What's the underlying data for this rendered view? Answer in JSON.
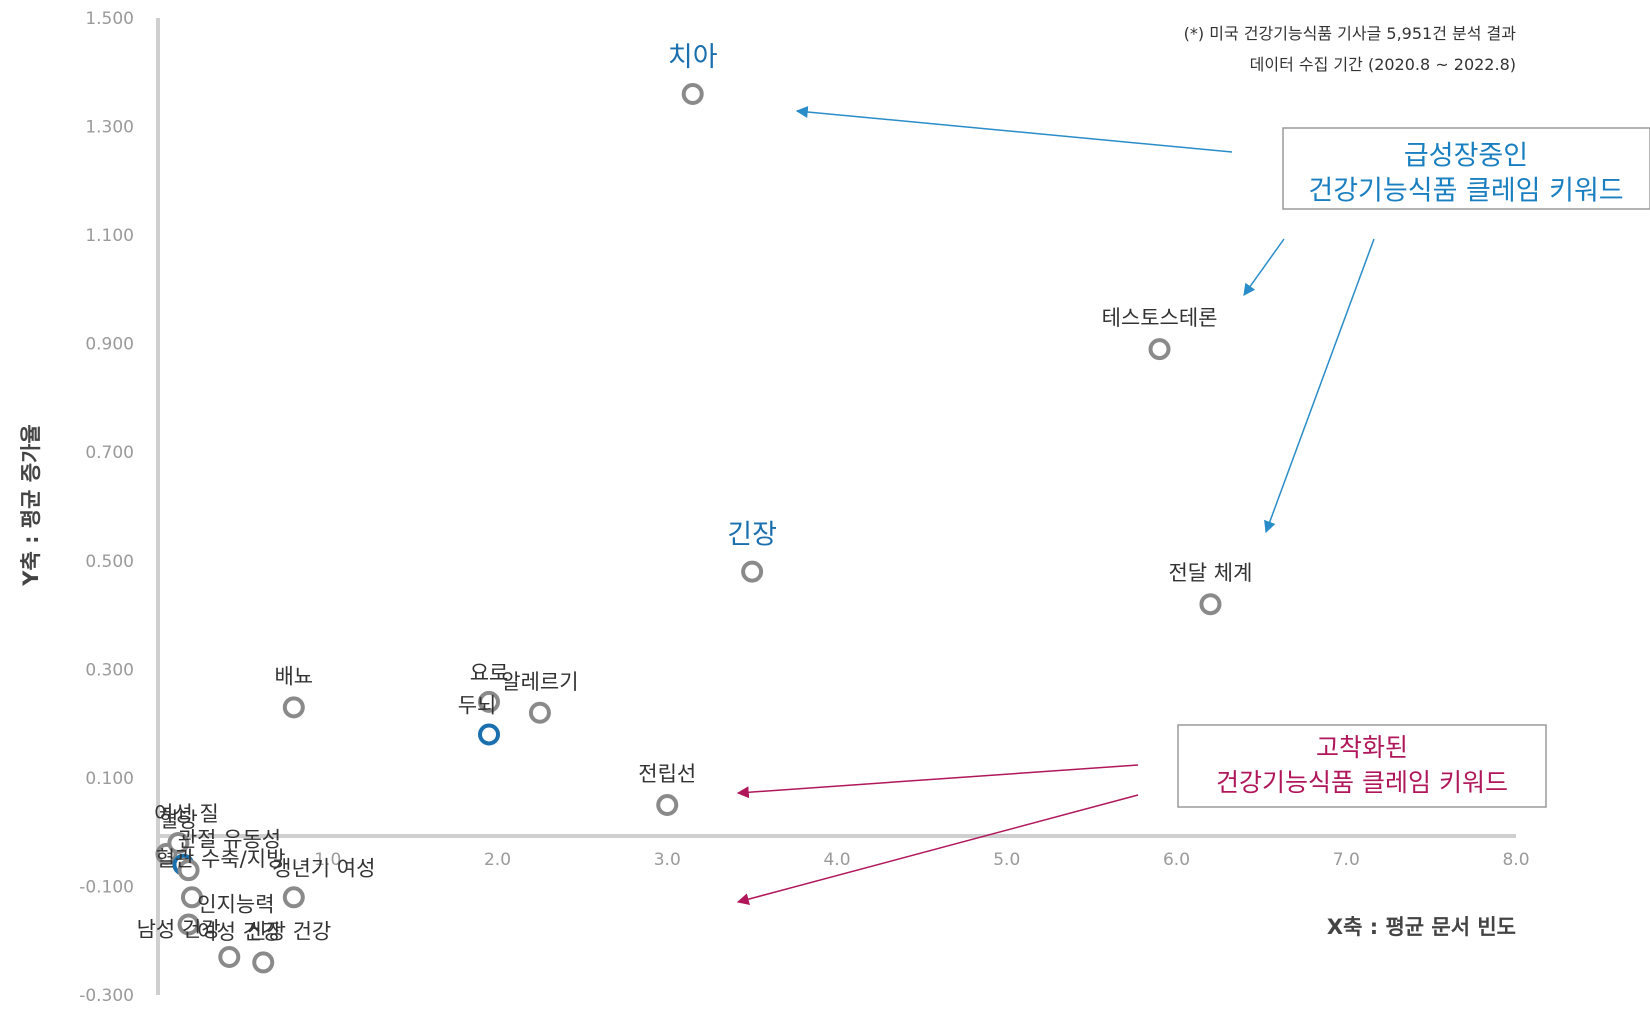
{
  "chart_data": {
    "type": "scatter",
    "xlabel": "X축 : 평균 문서 빈도",
    "ylabel": "Y축 : 평균 증가율",
    "xlim": [
      0,
      8.0
    ],
    "ylim": [
      -0.3,
      1.5
    ],
    "x_ticks": [
      "1.0",
      "2.0",
      "3.0",
      "4.0",
      "5.0",
      "6.0",
      "7.0",
      "8.0"
    ],
    "y_ticks": [
      "1.500",
      "1.300",
      "1.100",
      "0.900",
      "0.700",
      "0.500",
      "0.300",
      "0.100",
      "-0.100",
      "-0.300"
    ],
    "grid": false,
    "notes": [
      "(*) 미국 건강기능식품 기사글 5,951건 분석 결과",
      "데이터 수집 기간 (2020.8 ~ 2022.8)"
    ],
    "points": [
      {
        "label": "치아",
        "x": 3.15,
        "y": 1.36,
        "highlight": true
      },
      {
        "label": "테스토스테론",
        "x": 5.9,
        "y": 0.89
      },
      {
        "label": "긴장",
        "x": 3.5,
        "y": 0.48,
        "highlight": true
      },
      {
        "label": "전달 체계",
        "x": 6.2,
        "y": 0.42
      },
      {
        "label": "배뇨",
        "x": 0.8,
        "y": 0.23
      },
      {
        "label": "요로",
        "x": 1.95,
        "y": 0.24
      },
      {
        "label": "두뇌",
        "x": 1.95,
        "y": 0.18,
        "blue": true
      },
      {
        "label": "알레르기",
        "x": 2.25,
        "y": 0.22
      },
      {
        "label": "전립선",
        "x": 3.0,
        "y": 0.05
      },
      {
        "label": "여성 질",
        "x": 0.05,
        "y": -0.04
      },
      {
        "label": "혈당",
        "x": 0.12,
        "y": -0.02
      },
      {
        "label": "관절 유동성",
        "x": 0.15,
        "y": -0.06,
        "blue": true
      },
      {
        "label": "혈관 수축/지방",
        "x": 0.18,
        "y": -0.07
      },
      {
        "label": "인지능력",
        "x": 0.2,
        "y": -0.12
      },
      {
        "label": "갱년기 여성",
        "x": 0.8,
        "y": -0.12
      },
      {
        "label": "남성 건강",
        "x": 0.18,
        "y": -0.17
      },
      {
        "label": "여성 건강",
        "x": 0.42,
        "y": -0.23
      },
      {
        "label": "신장 건강",
        "x": 0.62,
        "y": -0.24
      }
    ],
    "callouts": [
      {
        "lines": [
          "급성장중인",
          "건강기능식품 클레임 키워드"
        ],
        "color": "#1a7fc0"
      },
      {
        "lines": [
          "고착화된",
          "건강기능식품 클레임 키워드"
        ],
        "color": "#b0175a"
      }
    ]
  }
}
